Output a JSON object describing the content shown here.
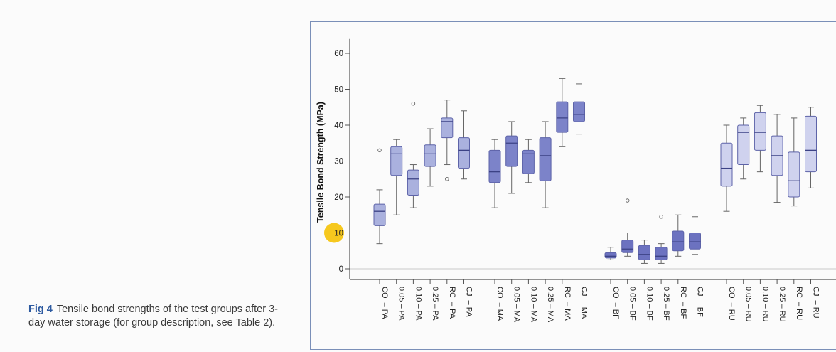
{
  "caption": {
    "fig_label": "Fig 4",
    "text": "Tensile bond strengths of the test groups after 3-day water storage (for group description, see Table 2)."
  },
  "chart_data": {
    "type": "boxplot",
    "ylabel": "Tensile Bond Strength (MPa)",
    "ylim": [
      -4,
      64
    ],
    "yticks": [
      0,
      10,
      20,
      30,
      40,
      50,
      60
    ],
    "highlighted_tick": 10,
    "reference_lines": [
      0,
      10
    ],
    "groups": [
      {
        "name": "PA",
        "color": "#aab1de",
        "categories": [
          {
            "label": "CO  – PA",
            "min": 7,
            "q1": 12,
            "median": 16,
            "q3": 18,
            "max": 22,
            "outliers": [
              33
            ]
          },
          {
            "label": "0.05 – PA",
            "min": 15,
            "q1": 26,
            "median": 32,
            "q3": 34,
            "max": 36,
            "outliers": []
          },
          {
            "label": "0.10 – PA",
            "min": 17,
            "q1": 20.5,
            "median": 25,
            "q3": 27.5,
            "max": 29,
            "outliers": [
              46
            ]
          },
          {
            "label": "0.25 – PA",
            "min": 23,
            "q1": 28.5,
            "median": 32,
            "q3": 34.5,
            "max": 39,
            "outliers": []
          },
          {
            "label": "RC  – PA",
            "min": 29,
            "q1": 36.5,
            "median": 41,
            "q3": 42,
            "max": 47,
            "outliers": [
              25
            ]
          },
          {
            "label": "CJ  – PA",
            "min": 25,
            "q1": 28,
            "median": 33,
            "q3": 36.5,
            "max": 44,
            "outliers": []
          }
        ]
      },
      {
        "name": "MA",
        "color": "#7c83c9",
        "categories": [
          {
            "label": "CO  – MA",
            "min": 17,
            "q1": 24,
            "median": 27,
            "q3": 33,
            "max": 36,
            "outliers": []
          },
          {
            "label": "0.05 – MA",
            "min": 21,
            "q1": 28.5,
            "median": 35,
            "q3": 37,
            "max": 41,
            "outliers": []
          },
          {
            "label": "0.10 – MA",
            "min": 24,
            "q1": 26.5,
            "median": 32,
            "q3": 33,
            "max": 36,
            "outliers": []
          },
          {
            "label": "0.25 – MA",
            "min": 17,
            "q1": 24.5,
            "median": 31.5,
            "q3": 36.5,
            "max": 41,
            "outliers": []
          },
          {
            "label": "RC  – MA",
            "min": 34,
            "q1": 38,
            "median": 42,
            "q3": 46.5,
            "max": 53,
            "outliers": []
          },
          {
            "label": "CJ  – MA",
            "min": 37.5,
            "q1": 41,
            "median": 43,
            "q3": 46.5,
            "max": 51.5,
            "outliers": []
          }
        ]
      },
      {
        "name": "BF",
        "color": "#6c72c0",
        "categories": [
          {
            "label": "CO  – BF",
            "min": 2.5,
            "q1": 3,
            "median": 3.5,
            "q3": 4.5,
            "max": 6,
            "outliers": []
          },
          {
            "label": "0.05 – BF",
            "min": 3.5,
            "q1": 4.5,
            "median": 5.5,
            "q3": 8,
            "max": 10,
            "outliers": [
              19
            ]
          },
          {
            "label": "0.10 – BF",
            "min": 1.5,
            "q1": 2.5,
            "median": 4,
            "q3": 6.5,
            "max": 8,
            "outliers": []
          },
          {
            "label": "0.25 – BF",
            "min": 1.5,
            "q1": 2.5,
            "median": 3.5,
            "q3": 6,
            "max": 7,
            "outliers": [
              14.5
            ]
          },
          {
            "label": "RC  – BF",
            "min": 3.5,
            "q1": 5,
            "median": 7.5,
            "q3": 10.5,
            "max": 15,
            "outliers": []
          },
          {
            "label": "CJ  – BF",
            "min": 4,
            "q1": 5.5,
            "median": 7.5,
            "q3": 10,
            "max": 14.5,
            "outliers": []
          }
        ]
      },
      {
        "name": "RU",
        "color": "#cfd2ee",
        "categories": [
          {
            "label": "CO  – RU",
            "min": 16,
            "q1": 23,
            "median": 28,
            "q3": 35,
            "max": 40,
            "outliers": []
          },
          {
            "label": "0.05 – RU",
            "min": 25,
            "q1": 29,
            "median": 38,
            "q3": 40,
            "max": 42,
            "outliers": []
          },
          {
            "label": "0.10 – RU",
            "min": 27,
            "q1": 33,
            "median": 38,
            "q3": 43.5,
            "max": 45.5,
            "outliers": []
          },
          {
            "label": "0.25 – RU",
            "min": 18.5,
            "q1": 26,
            "median": 31.5,
            "q3": 37,
            "max": 43,
            "outliers": []
          },
          {
            "label": "RC  – RU",
            "min": 17.5,
            "q1": 20,
            "median": 24.5,
            "q3": 32.5,
            "max": 42,
            "outliers": []
          },
          {
            "label": "CJ  – RU",
            "min": 22.5,
            "q1": 27,
            "median": 33,
            "q3": 42.5,
            "max": 45,
            "outliers": []
          }
        ]
      }
    ]
  }
}
